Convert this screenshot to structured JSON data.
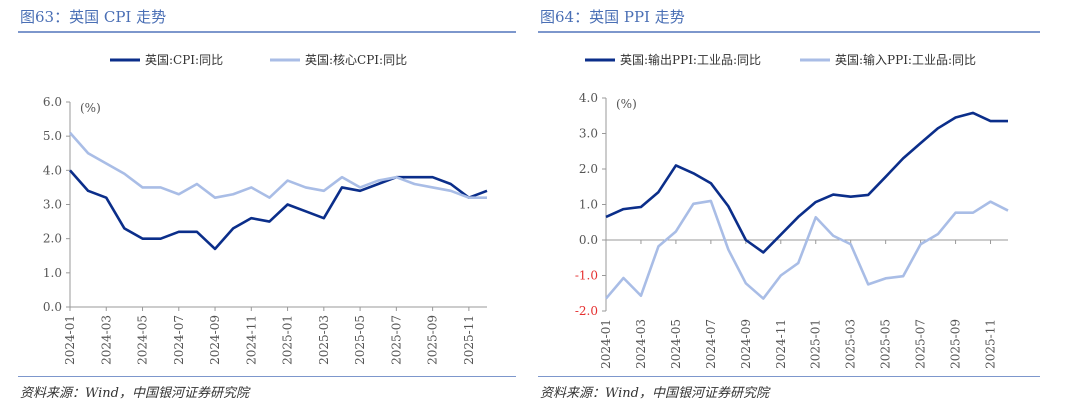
{
  "chart_data": [
    {
      "type": "line",
      "title": "图63：英国 CPI 走势",
      "unit_label": "(%)",
      "ylim": [
        0,
        6
      ],
      "yticks": [
        "0.0",
        "1.0",
        "2.0",
        "3.0",
        "4.0",
        "5.0",
        "6.0"
      ],
      "x": [
        "2024-01",
        "2024-02",
        "2024-03",
        "2024-04",
        "2024-05",
        "2024-06",
        "2024-07",
        "2024-08",
        "2024-09",
        "2024-10",
        "2024-11",
        "2024-12",
        "2025-01",
        "2025-02",
        "2025-03",
        "2025-04",
        "2025-05",
        "2025-06",
        "2025-07",
        "2025-08",
        "2025-09",
        "2025-10",
        "2025-11",
        "2025-12"
      ],
      "xticks": [
        "2024-01",
        "2024-03",
        "2024-05",
        "2024-07",
        "2024-09",
        "2024-11",
        "2025-01",
        "2025-03",
        "2025-05",
        "2025-07",
        "2025-09",
        "2025-11"
      ],
      "series": [
        {
          "name": "英国:CPI:同比",
          "color": "#0b2e8a",
          "values": [
            4.0,
            3.4,
            3.2,
            2.3,
            2.0,
            2.0,
            2.2,
            2.2,
            1.7,
            2.3,
            2.6,
            2.5,
            3.0,
            2.8,
            2.6,
            3.5,
            3.4,
            3.6,
            3.8,
            3.8,
            3.8,
            3.6,
            3.2,
            3.4
          ]
        },
        {
          "name": "英国:核心CPI:同比",
          "color": "#a9bde6",
          "values": [
            5.1,
            4.5,
            4.2,
            3.9,
            3.5,
            3.5,
            3.3,
            3.6,
            3.2,
            3.3,
            3.5,
            3.2,
            3.7,
            3.5,
            3.4,
            3.8,
            3.5,
            3.7,
            3.8,
            3.6,
            3.5,
            3.4,
            3.2,
            3.2
          ]
        }
      ]
    },
    {
      "type": "line",
      "title": "图64：英国 PPI 走势",
      "unit_label": "(%)",
      "ylim": [
        -2,
        4
      ],
      "yticks": [
        "-2.0",
        "-1.0",
        "0.0",
        "1.0",
        "2.0",
        "3.0",
        "4.0"
      ],
      "x": [
        "2024-01",
        "2024-02",
        "2024-03",
        "2024-04",
        "2024-05",
        "2024-06",
        "2024-07",
        "2024-08",
        "2024-09",
        "2024-10",
        "2024-11",
        "2024-12",
        "2025-01",
        "2025-02",
        "2025-03",
        "2025-04",
        "2025-05",
        "2025-06",
        "2025-07",
        "2025-08",
        "2025-09",
        "2025-10",
        "2025-11",
        "2025-12"
      ],
      "xticks": [
        "2024-01",
        "2024-03",
        "2024-05",
        "2024-07",
        "2024-09",
        "2024-11",
        "2025-01",
        "2025-03",
        "2025-05",
        "2025-07",
        "2025-09",
        "2025-11"
      ],
      "series": [
        {
          "name": "英国:输出PPI:工业品:同比",
          "color": "#0b2e8a",
          "values": [
            0.65,
            0.87,
            0.93,
            1.35,
            2.1,
            1.88,
            1.6,
            0.95,
            0.0,
            -0.35,
            0.15,
            0.65,
            1.07,
            1.28,
            1.22,
            1.27,
            1.78,
            2.3,
            2.73,
            3.15,
            3.45,
            3.58,
            3.35,
            3.35
          ]
        },
        {
          "name": "英国:输入PPI:工业品:同比",
          "color": "#a9bde6",
          "values": [
            -1.65,
            -1.07,
            -1.57,
            -0.18,
            0.24,
            1.02,
            1.1,
            -0.27,
            -1.22,
            -1.65,
            -1.0,
            -0.65,
            0.64,
            0.12,
            -0.12,
            -1.25,
            -1.08,
            -1.02,
            -0.12,
            0.17,
            0.77,
            0.77,
            1.08,
            0.83
          ]
        }
      ]
    }
  ],
  "source": "资料来源：Wind，中国银河证券研究院"
}
